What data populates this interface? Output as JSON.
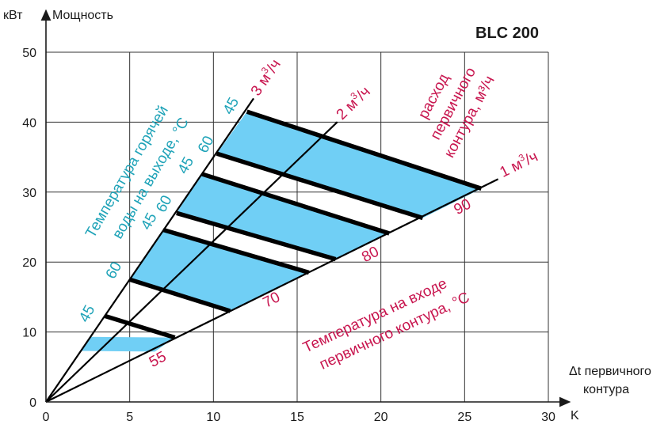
{
  "chart_data": {
    "type": "line",
    "title": "BLC 200",
    "ylabel_unit": "кВт",
    "ylabel": "Мощность",
    "xlabel": "Δt первичного контура",
    "xlabel_line1": "Δt первичного",
    "xlabel_line2": "контура",
    "xlabel_unit": "K",
    "xlim": [
      0,
      30
    ],
    "ylim": [
      0,
      50
    ],
    "xticks": [
      "0",
      "5",
      "10",
      "15",
      "20",
      "25",
      "30"
    ],
    "yticks": [
      "0",
      "10",
      "20",
      "30",
      "40",
      "50"
    ],
    "grid": true,
    "colors": {
      "fill": "#70cff5",
      "cyan_text": "#1fa3b8",
      "red_text": "#c8164f",
      "line": "#000000"
    },
    "flow_lines": [
      {
        "label": "3 м³/ч",
        "label_main": "3 м",
        "label_sup": "3",
        "label_end": "/ч",
        "slope": 3.5,
        "x_end": 12.4
      },
      {
        "label": "2 м³/ч",
        "label_main": "2 м",
        "label_sup": "3",
        "label_end": "/ч",
        "slope": 2.3,
        "x_end": 17.4
      },
      {
        "label": "1 м³/ч",
        "label_main": "1 м",
        "label_sup": "3",
        "label_end": "/ч",
        "slope": 1.18,
        "x_end": 27.0
      }
    ],
    "temperature_curves": [
      {
        "inlet_temp": "90",
        "outlet_temp": "45",
        "x": [
          12.0,
          26.0
        ],
        "y": [
          41.5,
          30.5
        ]
      },
      {
        "inlet_temp": "90",
        "outlet_temp": "60",
        "x": [
          10.2,
          22.5
        ],
        "y": [
          35.5,
          26.3
        ]
      },
      {
        "inlet_temp": "80",
        "outlet_temp": "45",
        "x": [
          9.3,
          20.5
        ],
        "y": [
          32.6,
          24.1
        ]
      },
      {
        "inlet_temp": "80",
        "outlet_temp": "60",
        "x": [
          7.8,
          17.3
        ],
        "y": [
          27.0,
          20.4
        ]
      },
      {
        "inlet_temp": "70",
        "outlet_temp": "45",
        "x": [
          7.0,
          15.7
        ],
        "y": [
          24.6,
          18.5
        ]
      },
      {
        "inlet_temp": "70",
        "outlet_temp": "60",
        "x": [
          5.0,
          11.0
        ],
        "y": [
          17.5,
          13.0
        ]
      },
      {
        "inlet_temp": "55",
        "outlet_temp": "45",
        "x": [
          3.5,
          7.7
        ],
        "y": [
          12.3,
          9.2
        ]
      }
    ],
    "shaded_bands": [
      {
        "x": [
          12.0,
          26.0,
          22.5,
          10.2
        ],
        "y": [
          41.5,
          30.5,
          26.3,
          35.5
        ]
      },
      {
        "x": [
          9.3,
          20.5,
          17.3,
          7.8
        ],
        "y": [
          32.6,
          24.1,
          20.4,
          27.0
        ]
      },
      {
        "x": [
          7.0,
          15.7,
          11.0,
          5.0
        ],
        "y": [
          24.6,
          18.5,
          13.0,
          17.5
        ]
      },
      {
        "x": [
          2.6,
          7.7,
          6.5,
          2.1
        ],
        "y": [
          9.3,
          9.2,
          7.2,
          7.3
        ]
      }
    ],
    "outlet_temp_labels": [
      {
        "text": "45",
        "x": 11.3,
        "y": 42.0
      },
      {
        "text": "45",
        "x": 8.6,
        "y": 33.5
      },
      {
        "text": "60",
        "x": 9.8,
        "y": 36.5
      },
      {
        "text": "45",
        "x": 6.4,
        "y": 25.5
      },
      {
        "text": "60",
        "x": 7.3,
        "y": 28.0
      },
      {
        "text": "60",
        "x": 4.3,
        "y": 18.5
      },
      {
        "text": "45",
        "x": 2.7,
        "y": 12.3
      }
    ],
    "inlet_temp_labels": [
      {
        "text": "90",
        "x": 25.0,
        "y": 27.3
      },
      {
        "text": "80",
        "x": 19.5,
        "y": 20.5
      },
      {
        "text": "70",
        "x": 13.6,
        "y": 14.0
      },
      {
        "text": "55",
        "x": 6.8,
        "y": 5.5
      }
    ],
    "annotations": {
      "outlet_title_line1": "Температура горячей",
      "outlet_title_line2": "воды на выходе, °С",
      "flow_title_line1": "расход",
      "flow_title_line2": "первичного",
      "flow_title_line3": "контура, м³/ч",
      "inlet_title_line1": "Температура на входе",
      "inlet_title_line2": "первичного контура, °С"
    }
  }
}
